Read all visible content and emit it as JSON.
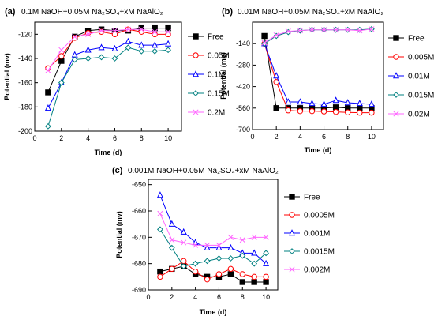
{
  "chart_data": [
    {
      "type": "line",
      "panel": "(a)",
      "title": "0.1M NaOH+0.05M Na₂SO₄+xM NaAlO₂",
      "xlabel": "Time (d)",
      "ylabel": "Potential (mv)",
      "xlim": [
        0,
        11
      ],
      "ylim": [
        -200,
        -110
      ],
      "xticks": [
        0,
        2,
        4,
        6,
        8,
        10
      ],
      "yticks": [
        -200,
        -180,
        -160,
        -140,
        -120
      ],
      "legend_position": "right",
      "x": [
        1,
        2,
        3,
        4,
        5,
        6,
        7,
        8,
        9,
        10
      ],
      "series": [
        {
          "name": "Free",
          "color": "#000000",
          "marker": "square-filled",
          "values": [
            -168,
            -142,
            -122,
            -117,
            -116,
            -117,
            -117,
            -115,
            -115,
            -115
          ]
        },
        {
          "name": "0.05M",
          "color": "#ff0000",
          "marker": "circle-open",
          "values": [
            -148,
            -138,
            -123,
            -119,
            -118,
            -120,
            -116,
            -118,
            -120,
            -120
          ]
        },
        {
          "name": "0.1M",
          "color": "#0000ff",
          "marker": "triangle-open",
          "values": [
            -181,
            -160,
            -137,
            -133,
            -131,
            -132,
            -126,
            -129,
            -129,
            -128
          ]
        },
        {
          "name": "0.15M",
          "color": "#008080",
          "marker": "diamond-open",
          "values": [
            -196,
            -160,
            -141,
            -140,
            -139,
            -140,
            -131,
            -134,
            -134,
            -133
          ]
        },
        {
          "name": "0.2M",
          "color": "#ff66ff",
          "marker": "x",
          "values": [
            -150,
            -133,
            -122,
            -120,
            -117,
            -117,
            -116,
            -116,
            -118,
            -118
          ]
        }
      ]
    },
    {
      "type": "line",
      "panel": "(b)",
      "title": "0.01M NaOH+0.05M Na₂SO₄+xM NaAlO₂",
      "xlabel": "Time (d)",
      "ylabel": "Potential (mv)",
      "xlim": [
        0,
        11
      ],
      "ylim": [
        -700,
        0
      ],
      "xticks": [
        0,
        2,
        4,
        6,
        8,
        10
      ],
      "yticks": [
        -700,
        -560,
        -420,
        -280,
        -140
      ],
      "legend_position": "right",
      "x": [
        1,
        2,
        3,
        4,
        5,
        6,
        7,
        8,
        9,
        10
      ],
      "series": [
        {
          "name": "Free",
          "color": "#000000",
          "marker": "square-filled",
          "values": [
            -90,
            -560,
            -560,
            -560,
            -560,
            -560,
            -555,
            -560,
            -560,
            -560
          ]
        },
        {
          "name": "0.005M",
          "color": "#ff0000",
          "marker": "circle-open",
          "values": [
            -140,
            -390,
            -575,
            -580,
            -580,
            -582,
            -585,
            -588,
            -590,
            -590
          ]
        },
        {
          "name": "0.01M",
          "color": "#0000ff",
          "marker": "triangle-open",
          "values": [
            -140,
            -350,
            -520,
            -520,
            -530,
            -535,
            -510,
            -525,
            -530,
            -535
          ]
        },
        {
          "name": "0.015M",
          "color": "#008080",
          "marker": "diamond-open",
          "values": [
            -140,
            -90,
            -65,
            -55,
            -50,
            -50,
            -50,
            -50,
            -50,
            -45
          ]
        },
        {
          "name": "0.02M",
          "color": "#ff66ff",
          "marker": "x",
          "values": [
            -135,
            -85,
            -60,
            -55,
            -50,
            -50,
            -50,
            -50,
            -55,
            -45
          ]
        }
      ]
    },
    {
      "type": "line",
      "panel": "(c)",
      "title": "0.001M NaOH+0.05M Na₂SO₄+xM NaAlO₂",
      "xlabel": "Time (d)",
      "ylabel": "Potential (mv)",
      "xlim": [
        0,
        11
      ],
      "ylim": [
        -690,
        -648
      ],
      "xticks": [
        0,
        2,
        4,
        6,
        8,
        10
      ],
      "yticks": [
        -690,
        -680,
        -670,
        -660,
        -650
      ],
      "legend_position": "right",
      "x": [
        1,
        2,
        3,
        4,
        5,
        6,
        7,
        8,
        9,
        10
      ],
      "series": [
        {
          "name": "Free",
          "color": "#000000",
          "marker": "square-filled",
          "values": [
            -683,
            -682,
            -681,
            -684,
            -685,
            -685,
            -684,
            -687,
            -687,
            -687
          ]
        },
        {
          "name": "0.0005M",
          "color": "#ff0000",
          "marker": "circle-open",
          "values": [
            -685,
            -682,
            -679,
            -683,
            -686,
            -684,
            -682,
            -684,
            -685,
            -685
          ]
        },
        {
          "name": "0.001M",
          "color": "#0000ff",
          "marker": "triangle-open",
          "values": [
            -654,
            -665,
            -668,
            -672,
            -674,
            -674,
            -674,
            -676,
            -676,
            -680
          ]
        },
        {
          "name": "0.0015M",
          "color": "#008080",
          "marker": "diamond-open",
          "values": [
            -667,
            -674,
            -681,
            -680,
            -679,
            -678,
            -678,
            -677,
            -680,
            -676
          ]
        },
        {
          "name": "0.002M",
          "color": "#ff66ff",
          "marker": "x",
          "values": [
            -661,
            -671,
            -672,
            -673,
            -673,
            -673,
            -670,
            -671,
            -670,
            -670
          ]
        }
      ]
    }
  ]
}
